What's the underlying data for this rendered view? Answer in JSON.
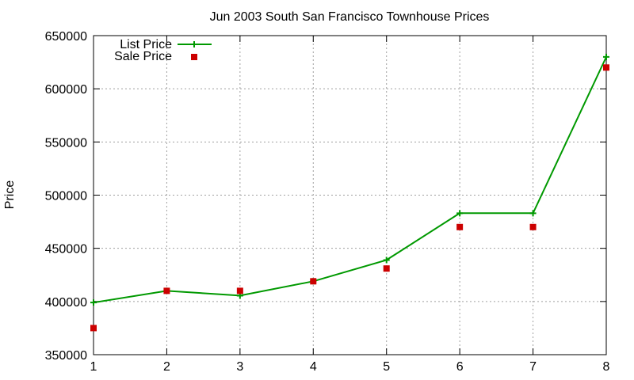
{
  "chart_data": {
    "type": "line",
    "title": "Jun 2003 South San Francisco Townhouse Prices",
    "xlabel": "",
    "ylabel": "Price",
    "x": [
      1,
      2,
      3,
      4,
      5,
      6,
      7,
      8
    ],
    "xticks": [
      "1",
      "2",
      "3",
      "4",
      "5",
      "6",
      "7",
      "8"
    ],
    "xlim": [
      1,
      8
    ],
    "ylim": [
      350000,
      650000
    ],
    "yticks": [
      "350000",
      "400000",
      "450000",
      "500000",
      "550000",
      "600000",
      "650000"
    ],
    "grid": true,
    "legend_position": "top-left",
    "series": [
      {
        "name": "List Price",
        "style": "line-with-plus-markers",
        "color": "#009900",
        "values": [
          399000,
          410000,
          405500,
          419000,
          439000,
          483000,
          483000,
          630000
        ]
      },
      {
        "name": "Sale Price",
        "style": "square-points",
        "color": "#cc0000",
        "values": [
          375000,
          410000,
          410000,
          419000,
          431000,
          470000,
          470000,
          620000
        ]
      }
    ]
  }
}
